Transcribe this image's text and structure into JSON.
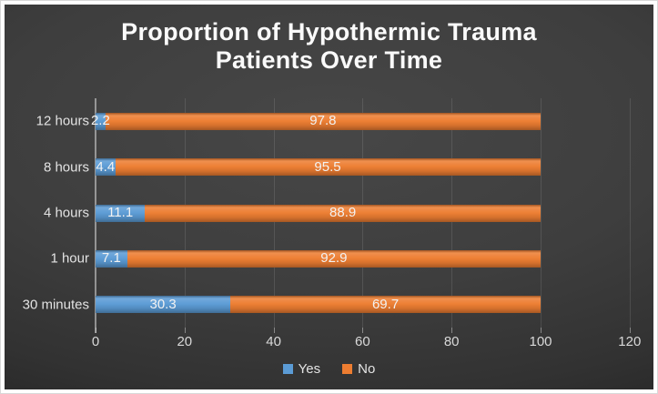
{
  "title": "Proportion of Hypothermic Trauma Patients Over Time",
  "colors": {
    "yes_blue": "#5B9BD5",
    "no_orange": "#ED7D31",
    "background_dark": "#3E3E3E",
    "text_light": "#E3E3E3"
  },
  "legend": {
    "yes_label": "Yes",
    "no_label": "No"
  },
  "chart_data": {
    "type": "bar",
    "orientation": "horizontal",
    "stacked": true,
    "title": "Proportion of Hypothermic Trauma Patients Over Time",
    "xlabel": "",
    "ylabel": "",
    "categories": [
      "12 hours",
      "8 hours",
      "4 hours",
      "1 hour",
      "30 minutes"
    ],
    "series": [
      {
        "name": "Yes",
        "color": "#5B9BD5",
        "values": [
          2.2,
          4.4,
          11.1,
          7.1,
          30.3
        ]
      },
      {
        "name": "No",
        "color": "#ED7D31",
        "values": [
          97.8,
          95.5,
          88.9,
          92.9,
          69.7
        ]
      }
    ],
    "xlim": [
      0,
      120
    ],
    "xticks": [
      0,
      20,
      40,
      60,
      80,
      100,
      120
    ],
    "grid": true,
    "legend_position": "bottom",
    "data_labels": true
  }
}
